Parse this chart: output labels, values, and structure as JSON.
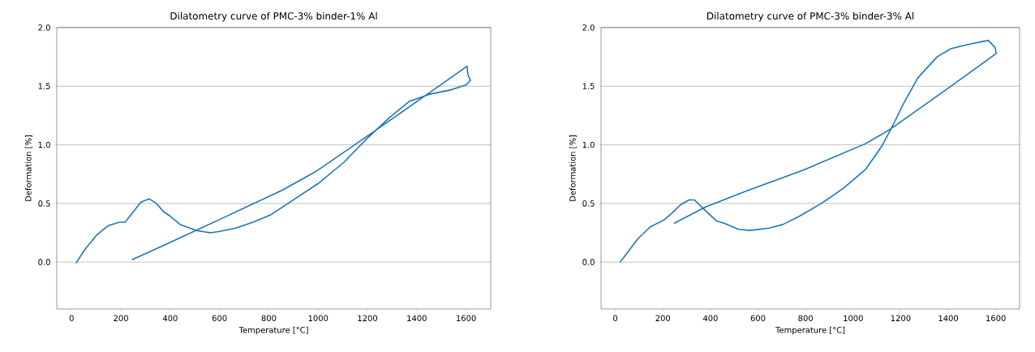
{
  "chart_data": [
    {
      "type": "line",
      "title": "Dilatometry curve of PMC-3% binder-1% Al",
      "xlabel": "Temperature [°C]",
      "ylabel": "Deformation [%]",
      "color": "#1f77b4",
      "grid": "y",
      "x": [
        17,
        55,
        101,
        148,
        194,
        217,
        251,
        280,
        315,
        344,
        373,
        401,
        441,
        505,
        562,
        597,
        666,
        735,
        805,
        885,
        1000,
        1104,
        1196,
        1288,
        1369,
        1449,
        1541,
        1599,
        1618,
        1607,
        1604,
        1496,
        1231,
        989,
        851,
        597,
        392,
        245
      ],
      "values": [
        -0.01,
        0.11,
        0.23,
        0.31,
        0.34,
        0.34,
        0.43,
        0.51,
        0.54,
        0.5,
        0.43,
        0.39,
        0.32,
        0.27,
        0.25,
        0.26,
        0.29,
        0.34,
        0.4,
        0.51,
        0.67,
        0.85,
        1.05,
        1.23,
        1.37,
        1.43,
        1.47,
        1.51,
        1.55,
        1.6,
        1.67,
        1.51,
        1.12,
        0.77,
        0.61,
        0.36,
        0.16,
        0.02
      ],
      "xlim": [
        -60,
        1700
      ],
      "ylim": [
        -0.4,
        2.0
      ],
      "xticks": [
        0,
        200,
        400,
        600,
        800,
        1000,
        1200,
        1400,
        1600
      ],
      "yticks": [
        {
          "value": 0,
          "label": "0.0"
        },
        {
          "value": 0.5,
          "label": "0.5"
        },
        {
          "value": 1,
          "label": "1.0"
        },
        {
          "value": 1.5,
          "label": "1.5"
        },
        {
          "value": 2,
          "label": "2.0"
        }
      ]
    },
    {
      "type": "line",
      "title": "Dilatometry curve of PMC-3% binder-3% Al",
      "xlabel": "Temperature [°C]",
      "ylabel": "Deformation [%]",
      "color": "#1f77b4",
      "grid": "y",
      "x": [
        20,
        54,
        95,
        147,
        205,
        240,
        275,
        310,
        333,
        368,
        426,
        460,
        518,
        565,
        646,
        704,
        773,
        866,
        959,
        1052,
        1121,
        1168,
        1214,
        1272,
        1353,
        1411,
        1492,
        1568,
        1597,
        1602,
        1411,
        1168,
        1121,
        1052,
        797,
        542,
        379,
        246
      ],
      "values": [
        0.0,
        0.09,
        0.2,
        0.3,
        0.36,
        0.42,
        0.49,
        0.53,
        0.53,
        0.46,
        0.35,
        0.33,
        0.28,
        0.27,
        0.29,
        0.32,
        0.39,
        0.5,
        0.63,
        0.79,
        0.99,
        1.17,
        1.36,
        1.57,
        1.75,
        1.82,
        1.86,
        1.89,
        1.83,
        1.78,
        1.5,
        1.15,
        1.09,
        1.01,
        0.79,
        0.6,
        0.47,
        0.33
      ],
      "xlim": [
        -60,
        1700
      ],
      "ylim": [
        -0.4,
        2.0
      ],
      "xticks": [
        0,
        200,
        400,
        600,
        800,
        1000,
        1200,
        1400,
        1600
      ],
      "yticks": [
        {
          "value": 0,
          "label": "0.0"
        },
        {
          "value": 0.5,
          "label": "0.5"
        },
        {
          "value": 1,
          "label": "1.0"
        },
        {
          "value": 1.5,
          "label": "1.5"
        },
        {
          "value": 2,
          "label": "2.0"
        }
      ]
    }
  ]
}
